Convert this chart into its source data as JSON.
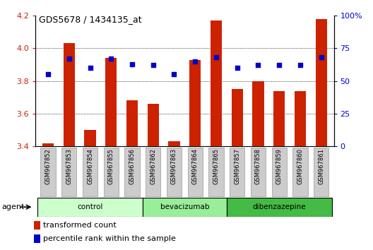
{
  "title": "GDS5678 / 1434135_at",
  "samples": [
    "GSM967852",
    "GSM967853",
    "GSM967854",
    "GSM967855",
    "GSM967856",
    "GSM967862",
    "GSM967863",
    "GSM967864",
    "GSM967865",
    "GSM967857",
    "GSM967858",
    "GSM967859",
    "GSM967860",
    "GSM967861"
  ],
  "transformed_count": [
    3.42,
    4.03,
    3.5,
    3.94,
    3.68,
    3.66,
    3.43,
    3.93,
    4.17,
    3.75,
    3.8,
    3.74,
    3.74,
    4.18
  ],
  "percentile_rank": [
    55,
    67,
    60,
    67,
    63,
    62,
    55,
    65,
    68,
    60,
    62,
    62,
    62,
    68
  ],
  "groups": [
    {
      "label": "control",
      "start": 0,
      "end": 5
    },
    {
      "label": "bevacizumab",
      "start": 5,
      "end": 9
    },
    {
      "label": "dibenzazepine",
      "start": 9,
      "end": 14
    }
  ],
  "group_colors": [
    "#ccffcc",
    "#99ee99",
    "#44bb44"
  ],
  "ylim_left": [
    3.4,
    4.2
  ],
  "ylim_right": [
    0,
    100
  ],
  "yticks_left": [
    3.4,
    3.6,
    3.8,
    4.0,
    4.2
  ],
  "yticks_right": [
    0,
    25,
    50,
    75,
    100
  ],
  "ytick_labels_right": [
    "0",
    "25",
    "50",
    "75",
    "100%"
  ],
  "bar_color": "#cc2200",
  "dot_color": "#0000cc",
  "bar_width": 0.55,
  "background_color": "#ffffff",
  "tick_color_left": "#cc2200",
  "tick_color_right": "#0000cc",
  "legend_bar_label": "transformed count",
  "legend_dot_label": "percentile rank within the sample",
  "agent_label": "agent",
  "xticklabel_bg": "#dddddd",
  "grid_yticks": [
    3.6,
    3.8,
    4.0
  ]
}
